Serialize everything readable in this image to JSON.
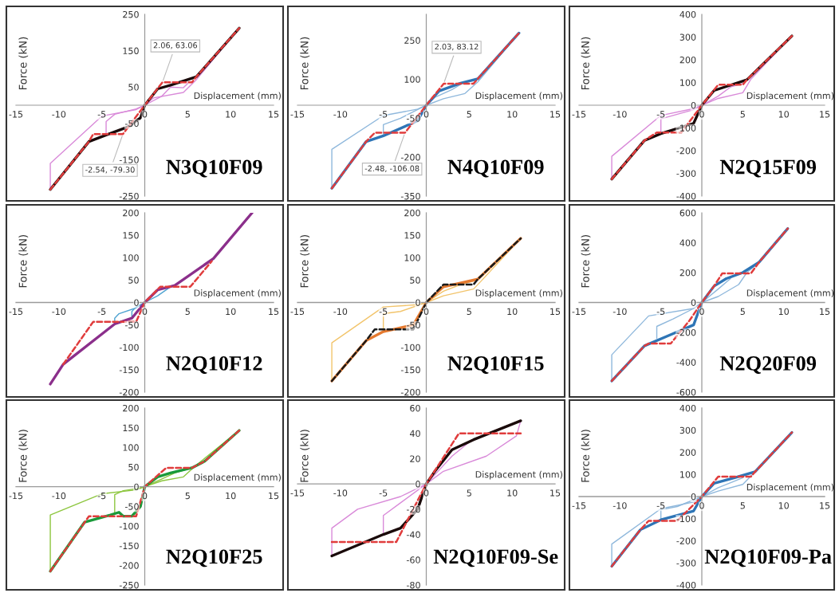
{
  "chart_data": [
    {
      "type": "line",
      "xlabel": "Displacement (mm)",
      "ylabel": "Force (kN)",
      "xlim": [
        -15,
        15
      ],
      "xticks": [
        -15,
        -10,
        -5,
        0,
        5,
        10,
        15
      ],
      "ylim": [
        -250,
        250
      ],
      "yticks": [
        -250,
        -150,
        -50,
        50,
        150,
        250
      ],
      "grid": false,
      "legend": false,
      "marker": "none",
      "annotations": [
        "N3Q10F09",
        {
          "text": "2.06, 63.06",
          "x": 2.06,
          "y": 63.06
        },
        {
          "text": "-2.54, -79.30",
          "x": -2.54,
          "y": -79.3
        }
      ],
      "series": [
        {
          "color": "#1a0a0a",
          "line_style": "solid",
          "x": [
            -11,
            -6.5,
            -4.5,
            -2,
            -0.5,
            0,
            1.5,
            3,
            6,
            11
          ],
          "values": [
            -232,
            -100,
            -82,
            -60,
            -35,
            0,
            45,
            55,
            78,
            212
          ]
        },
        {
          "color": "#d98ad9",
          "line_style": "solid",
          "x": [
            -11,
            -11,
            -5,
            -1,
            0,
            1,
            4.5,
            6,
            11
          ],
          "values": [
            -232,
            -160,
            -30,
            -12,
            0,
            20,
            35,
            70,
            212
          ]
        },
        {
          "color": "#d98ad9",
          "line_style": "solid",
          "x": [
            -4.5,
            -4.5,
            -3.5,
            -1,
            0,
            2,
            3,
            4.5,
            5
          ],
          "values": [
            -82,
            -45,
            -25,
            -10,
            0,
            25,
            50,
            48,
            60
          ]
        },
        {
          "color": "#e03c3c",
          "line_style": "dashed",
          "x": [
            -11,
            -6.5,
            -6,
            -2.54,
            0,
            2.06,
            5.5,
            6,
            11
          ],
          "values": [
            -232,
            -100,
            -79.3,
            -79.3,
            0,
            63.06,
            63.06,
            78,
            212
          ]
        }
      ]
    },
    {
      "type": "line",
      "xlabel": "Displacement (mm)",
      "ylabel": "Force (kN)",
      "xlim": [
        -15,
        15
      ],
      "xticks": [
        -15,
        -10,
        -5,
        0,
        5,
        10,
        15
      ],
      "ylim": [
        -350,
        350
      ],
      "yticks": [
        -350,
        -200,
        -50,
        100,
        250
      ],
      "grid": false,
      "legend": false,
      "marker": "none",
      "annotations": [
        "N4Q10F09",
        {
          "text": "2.03, 83.12",
          "x": 2.03,
          "y": 83.12
        },
        {
          "text": "-2.48, -106.08",
          "x": -2.48,
          "y": -106.08
        }
      ],
      "series": [
        {
          "color": "#2e75b6",
          "line_style": "solid",
          "x": [
            -11,
            -7,
            -5,
            -1,
            0,
            1.5,
            4,
            6,
            10.8
          ],
          "values": [
            -320,
            -140,
            -118,
            -60,
            0,
            55,
            85,
            102,
            278
          ]
        },
        {
          "color": "#8fb8dc",
          "line_style": "solid",
          "x": [
            -11,
            -11,
            -5,
            -1,
            0,
            2,
            4.5,
            6,
            10.8
          ],
          "values": [
            -320,
            -170,
            -40,
            -15,
            0,
            25,
            45,
            90,
            278
          ]
        },
        {
          "color": "#8fb8dc",
          "line_style": "solid",
          "x": [
            -5,
            -5,
            -3,
            0,
            1,
            3,
            4
          ],
          "values": [
            -118,
            -75,
            -50,
            0,
            30,
            60,
            80
          ]
        },
        {
          "color": "#e03c3c",
          "line_style": "dashed",
          "x": [
            -11,
            -7,
            -6,
            -2.48,
            0,
            2.03,
            5.5,
            6,
            10.8
          ],
          "values": [
            -320,
            -140,
            -106.08,
            -106.08,
            0,
            83.12,
            83.12,
            102,
            278
          ]
        }
      ]
    },
    {
      "type": "line",
      "xlabel": "Displacement (mm)",
      "ylabel": "Force (kN)",
      "xlim": [
        -15,
        15
      ],
      "xticks": [
        -15,
        -10,
        -5,
        0,
        5,
        10,
        15
      ],
      "ylim": [
        -400,
        400
      ],
      "yticks": [
        -400,
        -300,
        -200,
        -100,
        0,
        100,
        200,
        300,
        400
      ],
      "grid": false,
      "legend": false,
      "marker": "none",
      "annotations": [
        "N2Q15F09"
      ],
      "series": [
        {
          "color": "#1a0a0a",
          "line_style": "solid",
          "x": [
            -11,
            -7,
            -5,
            -1,
            0,
            1.5,
            5.5,
            11
          ],
          "values": [
            -325,
            -155,
            -125,
            -80,
            0,
            65,
            112,
            305
          ]
        },
        {
          "color": "#d98ad9",
          "line_style": "solid",
          "x": [
            -11,
            -11,
            -5,
            -1,
            0,
            2,
            5,
            6,
            11
          ],
          "values": [
            -325,
            -225,
            -45,
            -15,
            0,
            30,
            55,
            115,
            305
          ]
        },
        {
          "color": "#d98ad9",
          "line_style": "solid",
          "x": [
            -5,
            -5,
            -3,
            -1,
            0,
            2,
            3.5,
            5
          ],
          "values": [
            -125,
            -60,
            -40,
            -20,
            0,
            40,
            80,
            95
          ]
        },
        {
          "color": "#e03c3c",
          "line_style": "dashed",
          "x": [
            -11,
            -7,
            -5.5,
            -2.5,
            0,
            2,
            5,
            5.5,
            11
          ],
          "values": [
            -325,
            -155,
            -120,
            -120,
            0,
            90,
            90,
            112,
            305
          ]
        }
      ]
    },
    {
      "type": "line",
      "xlabel": "Displacement (mm)",
      "ylabel": "Force (kN)",
      "xlim": [
        -15,
        15
      ],
      "xticks": [
        -15,
        -10,
        -5,
        0,
        5,
        10,
        15
      ],
      "ylim": [
        -200,
        200
      ],
      "yticks": [
        -200,
        -150,
        -100,
        -50,
        0,
        50,
        100,
        150,
        200
      ],
      "grid": false,
      "legend": false,
      "marker": "none",
      "annotations": [
        "N2Q10F12"
      ],
      "series": [
        {
          "color": "#8b2f8b",
          "line_style": "solid",
          "x": [
            -11,
            -9.5,
            -3.5,
            -1.5,
            0,
            1.5,
            3.5,
            8,
            12.5
          ],
          "values": [
            -182,
            -138,
            -48,
            -35,
            0,
            28,
            38,
            98,
            200
          ]
        },
        {
          "color": "#4fa3d1",
          "line_style": "solid",
          "x": [
            -3.5,
            -3.5,
            -3,
            -1,
            0,
            1.5,
            3
          ],
          "values": [
            -48,
            -35,
            -25,
            -12,
            0,
            15,
            35
          ]
        },
        {
          "color": "#4fa3d1",
          "line_style": "solid",
          "x": [
            -1.5,
            -1.5,
            -1,
            0
          ],
          "values": [
            -35,
            -20,
            -10,
            0
          ]
        },
        {
          "color": "#e03c3c",
          "line_style": "dashed",
          "x": [
            -9.5,
            -6,
            -1,
            0,
            1.8,
            5.3,
            7.8
          ],
          "values": [
            -138,
            -43,
            -43,
            0,
            35,
            35,
            92
          ]
        }
      ]
    },
    {
      "type": "line",
      "xlabel": "Displacement (mm)",
      "ylabel": "Force (kN)",
      "xlim": [
        -15,
        15
      ],
      "xticks": [
        -15,
        -10,
        -5,
        0,
        5,
        10,
        15
      ],
      "ylim": [
        -200,
        200
      ],
      "yticks": [
        -200,
        -150,
        -100,
        -50,
        0,
        50,
        100,
        150,
        200
      ],
      "grid": false,
      "legend": false,
      "marker": "none",
      "annotations": [
        "N2Q10F15"
      ],
      "series": [
        {
          "color": "#e57a30",
          "line_style": "solid",
          "x": [
            -11,
            -7,
            -5,
            -1.5,
            0,
            2,
            6,
            11
          ],
          "values": [
            -175,
            -85,
            -65,
            -50,
            0,
            35,
            52,
            143
          ]
        },
        {
          "color": "#f2c46b",
          "line_style": "solid",
          "x": [
            -11,
            -11,
            -5,
            -1,
            0,
            2,
            5.5,
            6.5,
            11
          ],
          "values": [
            -175,
            -90,
            -10,
            -5,
            0,
            15,
            30,
            50,
            143
          ]
        },
        {
          "color": "#f2c46b",
          "line_style": "solid",
          "x": [
            -5,
            -5,
            -3,
            0,
            2,
            4,
            5.5
          ],
          "values": [
            -65,
            -25,
            -20,
            0,
            25,
            40,
            48
          ]
        },
        {
          "color": "#1a1a1a",
          "line_style": "dashed",
          "x": [
            -11,
            -7,
            -6,
            -1.5,
            0,
            2,
            5.5,
            6,
            11
          ],
          "values": [
            -175,
            -85,
            -60,
            -60,
            0,
            40,
            40,
            52,
            143
          ]
        }
      ]
    },
    {
      "type": "line",
      "xlabel": "Displacement (mm)",
      "ylabel": "Force (kN)",
      "xlim": [
        -15,
        15
      ],
      "xticks": [
        -15,
        -10,
        -5,
        0,
        5,
        10,
        15
      ],
      "ylim": [
        -600,
        600
      ],
      "yticks": [
        -600,
        -400,
        -200,
        0,
        200,
        400,
        600
      ],
      "grid": false,
      "legend": false,
      "marker": "none",
      "annotations": [
        "N2Q20F09"
      ],
      "series": [
        {
          "color": "#2e75b6",
          "line_style": "solid",
          "x": [
            -11,
            -7,
            -4,
            -1,
            0,
            1.5,
            3,
            5,
            7,
            10.5
          ],
          "values": [
            -525,
            -290,
            -220,
            -150,
            0,
            110,
            160,
            200,
            270,
            495
          ]
        },
        {
          "color": "#8fb8dc",
          "line_style": "solid",
          "x": [
            -11,
            -11,
            -6.5,
            -1,
            0,
            2,
            4.5,
            5.5,
            7
          ],
          "values": [
            -525,
            -350,
            -90,
            -40,
            0,
            40,
            120,
            200,
            270
          ]
        },
        {
          "color": "#8fb8dc",
          "line_style": "solid",
          "x": [
            -5.5,
            -5.5,
            -3.5,
            -1,
            0,
            2,
            3.5
          ],
          "values": [
            -240,
            -160,
            -110,
            -40,
            0,
            90,
            160
          ]
        },
        {
          "color": "#e03c3c",
          "line_style": "dashed",
          "x": [
            -11,
            -7,
            -6.5,
            -3.8,
            -1.5,
            0,
            1.5,
            2.5,
            6,
            7,
            10.5
          ],
          "values": [
            -525,
            -290,
            -275,
            -275,
            -120,
            0,
            110,
            195,
            195,
            270,
            495
          ]
        }
      ]
    },
    {
      "type": "line",
      "xlabel": "Displacement (mm)",
      "ylabel": "Force (kN)",
      "xlim": [
        -15,
        15
      ],
      "xticks": [
        -15,
        -10,
        -5,
        0,
        5,
        10,
        15
      ],
      "ylim": [
        -250,
        200
      ],
      "yticks": [
        -250,
        -200,
        -150,
        -100,
        -50,
        0,
        50,
        100,
        150,
        200
      ],
      "grid": false,
      "legend": false,
      "marker": "none",
      "annotations": [
        "N2Q10F25"
      ],
      "series": [
        {
          "color": "#1a9a3a",
          "line_style": "solid",
          "x": [
            -11,
            -7,
            -4,
            -3,
            -2.5,
            -1.5,
            -0.5,
            0,
            1.5,
            3,
            5.5,
            7,
            11
          ],
          "values": [
            -215,
            -90,
            -72,
            -65,
            -75,
            -75,
            -50,
            0,
            25,
            35,
            48,
            65,
            143
          ]
        },
        {
          "color": "#8dc63f",
          "line_style": "solid",
          "x": [
            -11,
            -11,
            -5,
            -1,
            0,
            2,
            4.5,
            6,
            11
          ],
          "values": [
            -215,
            -72,
            -18,
            -8,
            0,
            15,
            25,
            55,
            143
          ]
        },
        {
          "color": "#8dc63f",
          "line_style": "solid",
          "x": [
            -3.5,
            -3.5,
            -2.5,
            -1,
            0,
            2,
            3.5,
            5
          ],
          "values": [
            -68,
            -20,
            -10,
            -5,
            0,
            20,
            35,
            45
          ]
        },
        {
          "color": "#e03c3c",
          "line_style": "dashed",
          "x": [
            -11,
            -6.5,
            -1,
            0,
            2.5,
            5.5,
            7,
            11
          ],
          "values": [
            -215,
            -75,
            -75,
            0,
            48,
            48,
            65,
            143
          ]
        }
      ]
    },
    {
      "type": "line",
      "xlabel": "Displacement (mm)",
      "ylabel": "Force (kN)",
      "xlim": [
        -15,
        15
      ],
      "xticks": [
        -15,
        -10,
        -5,
        0,
        5,
        10,
        15
      ],
      "ylim": [
        -80,
        60
      ],
      "yticks": [
        -80,
        -60,
        -40,
        -20,
        0,
        20,
        40,
        60
      ],
      "grid": false,
      "legend": false,
      "marker": "none",
      "annotations": [
        "N2Q10F09-Se"
      ],
      "series": [
        {
          "color": "#1a0a0a",
          "line_style": "solid",
          "x": [
            -11,
            -5,
            -3,
            -1,
            0,
            1,
            3,
            5.5,
            11
          ],
          "values": [
            -57,
            -40,
            -35,
            -20,
            0,
            10,
            27,
            35,
            50
          ]
        },
        {
          "color": "#d98ad9",
          "line_style": "solid",
          "x": [
            -11,
            -11,
            -8,
            -3,
            0,
            2,
            7,
            10.5,
            11
          ],
          "values": [
            -57,
            -35,
            -20,
            -10,
            0,
            10,
            22,
            38,
            50
          ]
        },
        {
          "color": "#d98ad9",
          "line_style": "solid",
          "x": [
            -5,
            -5,
            -3,
            0,
            3,
            5
          ],
          "values": [
            -40,
            -25,
            -15,
            0,
            22,
            33
          ]
        },
        {
          "color": "#e03c3c",
          "line_style": "dashed",
          "x": [
            -11,
            -3.5,
            0,
            3.8,
            11
          ],
          "values": [
            -46,
            -46,
            0,
            40,
            40
          ]
        }
      ]
    },
    {
      "type": "line",
      "xlabel": "Displacement (mm)",
      "ylabel": "Force (kN)",
      "xlim": [
        -15,
        15
      ],
      "xticks": [
        -15,
        -10,
        -5,
        0,
        5,
        10,
        15
      ],
      "ylim": [
        -400,
        400
      ],
      "yticks": [
        -400,
        -300,
        -200,
        -100,
        0,
        100,
        200,
        300,
        400
      ],
      "grid": false,
      "legend": false,
      "marker": "none",
      "annotations": [
        "N2Q10F09-Pa"
      ],
      "series": [
        {
          "color": "#2e75b6",
          "line_style": "solid",
          "x": [
            -11,
            -7.5,
            -5,
            -1,
            0,
            1.5,
            4,
            6.5,
            11
          ],
          "values": [
            -315,
            -150,
            -105,
            -65,
            0,
            60,
            85,
            112,
            290
          ]
        },
        {
          "color": "#8fb8dc",
          "line_style": "solid",
          "x": [
            -11,
            -11,
            -5,
            -1,
            0,
            2,
            5,
            6.5,
            11
          ],
          "values": [
            -315,
            -215,
            -55,
            -25,
            0,
            25,
            55,
            112,
            290
          ]
        },
        {
          "color": "#8fb8dc",
          "line_style": "solid",
          "x": [
            -5,
            -5,
            -3,
            0,
            2,
            4,
            5
          ],
          "values": [
            -105,
            -60,
            -45,
            0,
            40,
            70,
            85
          ]
        },
        {
          "color": "#e03c3c",
          "line_style": "dashed",
          "x": [
            -11,
            -7.5,
            -6.5,
            -3,
            0,
            2,
            6,
            6.5,
            11
          ],
          "values": [
            -315,
            -150,
            -110,
            -110,
            0,
            90,
            90,
            112,
            290
          ]
        }
      ]
    }
  ]
}
